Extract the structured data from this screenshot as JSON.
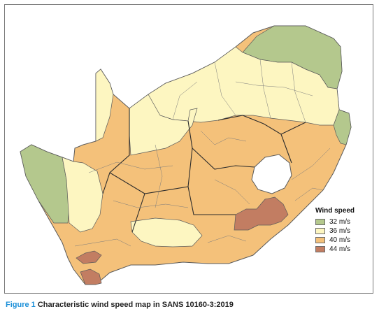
{
  "map": {
    "legend": {
      "title": "Wind speed",
      "items": [
        {
          "label": "32 m/s",
          "color": "#b4c88d"
        },
        {
          "label": "36 m/s",
          "color": "#fdf6c1"
        },
        {
          "label": "40 m/s",
          "color": "#f4c17a"
        },
        {
          "label": "44 m/s",
          "color": "#c27d62"
        }
      ]
    },
    "outside_color": "#ffffff",
    "border_color": "#5a5a5a"
  },
  "caption": {
    "figure_label": "Figure 1",
    "text": "Characteristic wind speed map in SANS 10160-3:2019"
  }
}
